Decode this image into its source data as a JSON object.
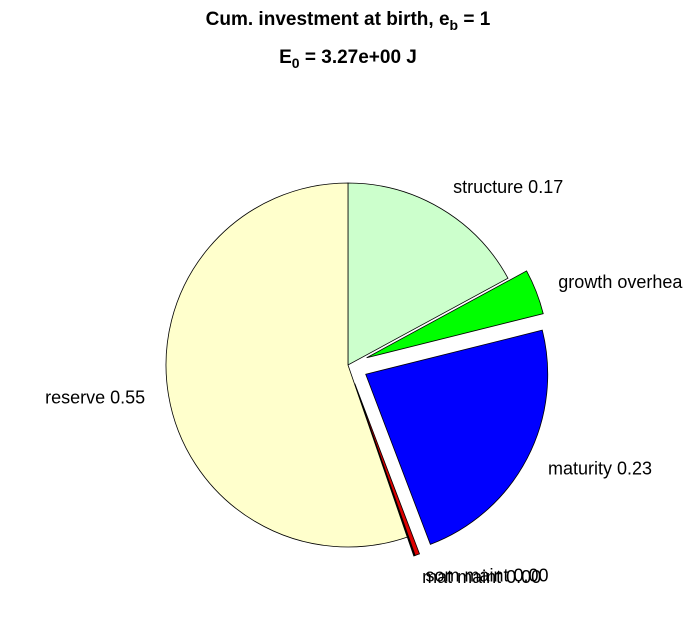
{
  "chart_data": {
    "type": "pie",
    "title": {
      "main": "Cum. investment at birth, e",
      "sub": "b",
      "tail": " = 1"
    },
    "subtitle": {
      "main": "E",
      "sub": "0",
      "tail": " = 3.27e+00 J"
    },
    "categories": [
      "structure 0.17",
      "growth overhea",
      "maturity 0.23",
      "som maint 0.00",
      "mat maint 0.00",
      "reserve 0.55"
    ],
    "values": [
      0.17,
      0.04,
      0.23,
      0.004,
      0.001,
      0.55
    ],
    "colors": [
      "#ccffcc",
      "#00ff00",
      "#0000ff",
      "#dd0000",
      "#000000",
      "#ffffcc"
    ],
    "explode": [
      false,
      true,
      true,
      true,
      true,
      false
    ]
  }
}
